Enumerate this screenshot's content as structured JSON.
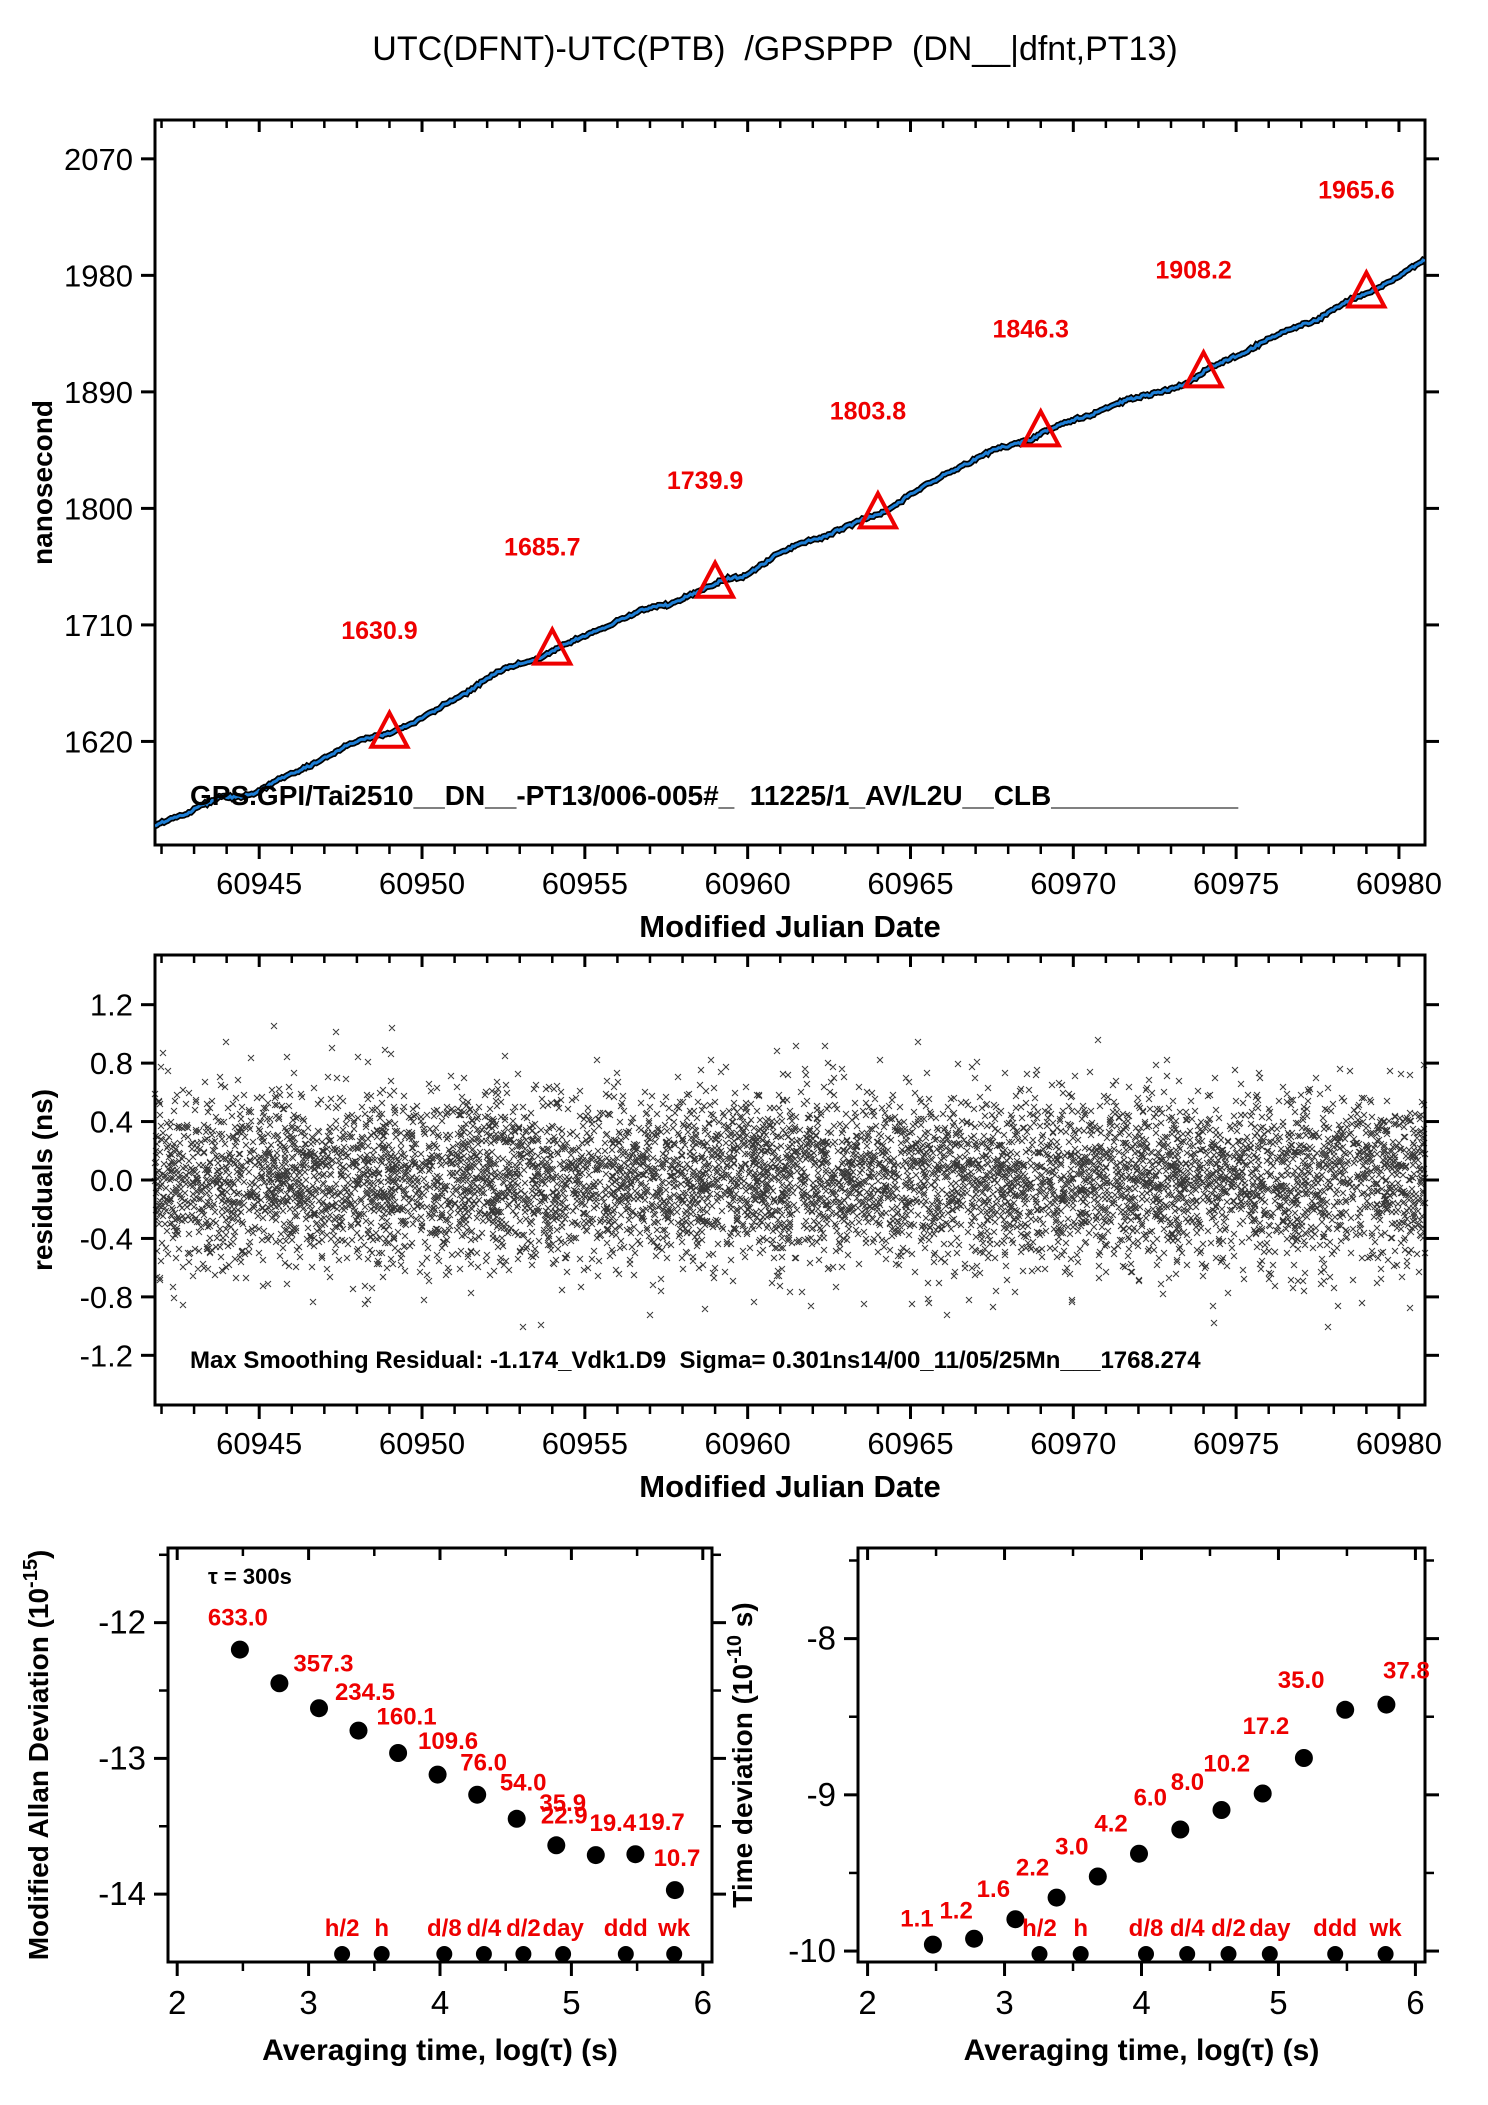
{
  "title": "UTC(DFNT)-UTC(PTB)  /GPSPPP  (DN__|dfnt,PT13)",
  "colors": {
    "curve_blue": "#1e7fd6",
    "accent_red": "#ee0000",
    "axis_black": "#000000",
    "scatter_black": "#000000"
  },
  "chart_data": [
    {
      "id": "phase",
      "type": "line",
      "ylabel": "nanosecond",
      "xlabel": "Modified Julian Date",
      "xlim": [
        60941.8,
        60980.8
      ],
      "ylim": [
        1540,
        2100
      ],
      "xticks": [
        60945,
        60950,
        60955,
        60960,
        60965,
        60970,
        60975,
        60980
      ],
      "xtick_labels": [
        "60945",
        "60950",
        "60955",
        "60960",
        "60965",
        "60970",
        "60975",
        "60980"
      ],
      "yticks": [
        1620,
        1710,
        1800,
        1890,
        1980,
        2070
      ],
      "ytick_labels": [
        "1620",
        "1710",
        "1800",
        "1890",
        "1980",
        "2070"
      ],
      "x_minor_step": 1,
      "grid": false,
      "legend": null,
      "trend": {
        "x_start": 60941.8,
        "y_start": 1550.5,
        "slope_ns_per_day": 11.16
      },
      "markers": [
        {
          "mjd": 60949,
          "value": 1630.9,
          "label": "1630.9"
        },
        {
          "mjd": 60954,
          "value": 1685.7,
          "label": "1685.7"
        },
        {
          "mjd": 60959,
          "value": 1739.9,
          "label": "1739.9"
        },
        {
          "mjd": 60964,
          "value": 1803.8,
          "label": "1803.8"
        },
        {
          "mjd": 60969,
          "value": 1846.3,
          "label": "1846.3"
        },
        {
          "mjd": 60974,
          "value": 1908.2,
          "label": "1908.2"
        },
        {
          "mjd": 60979,
          "value": 1965.6,
          "label": "1965.6"
        }
      ],
      "annotation": "GPS.GPI/Tai2510__DN__-PT13/006-005#_  11225/1_AV/L2U__CLB____________"
    },
    {
      "id": "residuals",
      "type": "scatter",
      "ylabel": "residuals (ns)",
      "xlabel": "Modified Julian Date",
      "xlim": [
        60941.8,
        60980.8
      ],
      "ylim": [
        -1.54,
        1.54
      ],
      "xticks": [
        60945,
        60950,
        60955,
        60960,
        60965,
        60970,
        60975,
        60980
      ],
      "xtick_labels": [
        "60945",
        "60950",
        "60955",
        "60960",
        "60965",
        "60970",
        "60975",
        "60980"
      ],
      "yticks": [
        -1.2,
        -0.8,
        -0.4,
        0.0,
        0.4,
        0.8,
        1.2
      ],
      "ytick_labels": [
        "-1.2",
        "-0.8",
        "-0.4",
        "0.0",
        "0.4",
        "0.8",
        "1.2"
      ],
      "x_minor_step": 1,
      "grid": false,
      "sigma_ns": 0.301,
      "n_points": 7000,
      "annotation": "Max Smoothing Residual: -1.174_Vdk1.D9  Sigma= 0.301ns14/00_11/05/25Mn___1768.274"
    },
    {
      "id": "mdev",
      "type": "scatter",
      "title_note": "τ = 300s",
      "ylabel": {
        "pre": "Modified Allan Deviation (10",
        "sup": "-15",
        "post": ")"
      },
      "xlabel": "Averaging time, log(τ) (s)",
      "xlim": [
        1.93,
        6.07
      ],
      "ylim": [
        -14.5,
        -11.45
      ],
      "xticks": [
        2,
        3,
        4,
        5,
        6
      ],
      "xtick_labels": [
        "2",
        "3",
        "4",
        "5",
        "6"
      ],
      "yticks": [
        -12,
        -13,
        -14
      ],
      "ytick_labels": [
        "-12",
        "-13",
        "-14"
      ],
      "minor_step": 0.5,
      "grid": false,
      "unit_exponent": -15,
      "x": [
        2.477,
        2.778,
        3.079,
        3.38,
        3.681,
        3.982,
        4.283,
        4.584,
        4.885,
        5.186,
        5.487,
        5.788
      ],
      "values": [
        633.0,
        357.3,
        234.5,
        160.1,
        109.6,
        76.0,
        54.0,
        35.9,
        22.9,
        19.4,
        19.7,
        10.7
      ],
      "labels": [
        "633.0",
        "357.3",
        "234.5",
        "160.1",
        "109.6",
        "76.0",
        "54.0",
        "35.9",
        "22.9",
        "19.4",
        "19.7",
        "10.7"
      ],
      "time_markers": {
        "labels": [
          "h/2",
          "h",
          "d/8",
          "d/4",
          "d/2",
          "day",
          "ddd",
          "wk"
        ],
        "log_tau": [
          3.255,
          3.556,
          4.033,
          4.334,
          4.635,
          4.937,
          5.414,
          5.782
        ]
      }
    },
    {
      "id": "tdev",
      "type": "scatter",
      "ylabel": {
        "pre": "Time deviation (10",
        "sup": "-10",
        "post": " s)"
      },
      "xlabel": "Averaging time, log(τ) (s)",
      "xlim": [
        1.93,
        6.07
      ],
      "ylim": [
        -10.07,
        -7.42
      ],
      "xticks": [
        2,
        3,
        4,
        5,
        6
      ],
      "xtick_labels": [
        "2",
        "3",
        "4",
        "5",
        "6"
      ],
      "yticks": [
        -8,
        -9,
        -10
      ],
      "ytick_labels": [
        "-8",
        "-9",
        "-10"
      ],
      "minor_step": 0.5,
      "grid": false,
      "unit_exponent": -10,
      "x": [
        2.477,
        2.778,
        3.079,
        3.38,
        3.681,
        3.982,
        4.283,
        4.584,
        4.885,
        5.186,
        5.487,
        5.788
      ],
      "values": [
        1.1,
        1.2,
        1.6,
        2.2,
        3.0,
        4.2,
        6.0,
        8.0,
        10.2,
        17.2,
        35.0,
        37.8
      ],
      "labels": [
        "1.1",
        "1.2",
        "1.6",
        "2.2",
        "3.0",
        "4.2",
        "6.0",
        "8.0",
        "10.2",
        "17.2",
        "35.0",
        "37.8"
      ],
      "time_markers": {
        "labels": [
          "h/2",
          "h",
          "d/8",
          "d/4",
          "d/2",
          "day",
          "ddd",
          "wk"
        ],
        "log_tau": [
          3.255,
          3.556,
          4.033,
          4.334,
          4.635,
          4.937,
          5.414,
          5.782
        ]
      }
    }
  ]
}
